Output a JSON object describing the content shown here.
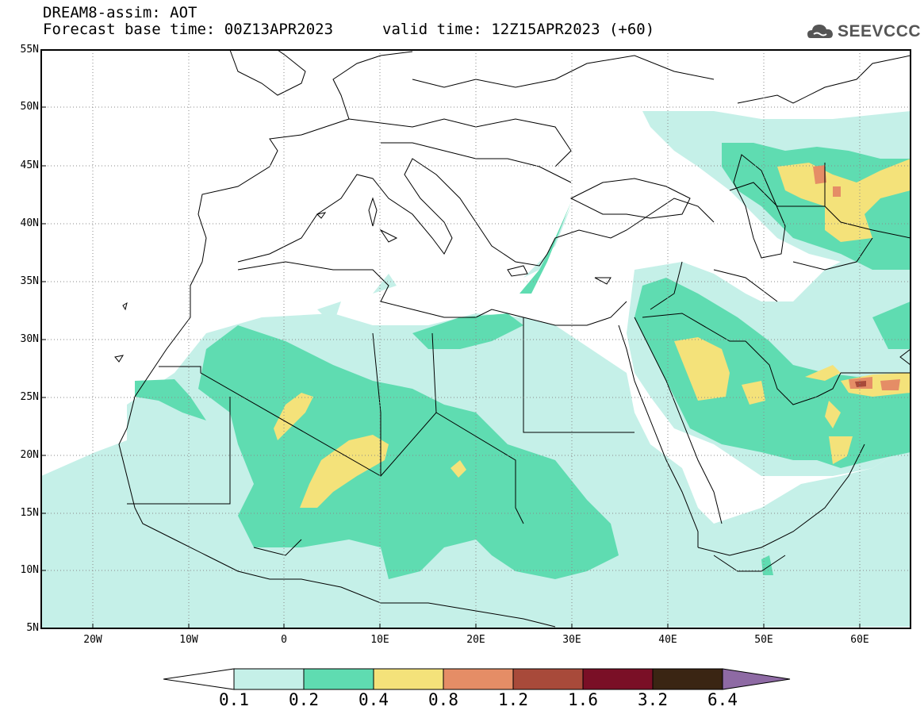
{
  "header": {
    "title": "DREAM8-assim: AOT",
    "base_time": "Forecast base time: 00Z13APR2023",
    "valid_time": "valid time: 12Z15APR2023 (+60)",
    "logo_text": "SEEVCCC"
  },
  "axes": {
    "lat_labels": [
      "55N",
      "50N",
      "45N",
      "40N",
      "35N",
      "30N",
      "25N",
      "20N",
      "15N",
      "10N",
      "5N"
    ],
    "lon_labels": [
      "20W",
      "10W",
      "0",
      "10E",
      "20E",
      "30E",
      "40E",
      "50E",
      "60E"
    ]
  },
  "legend": {
    "labels": [
      "0.1",
      "0.2",
      "0.4",
      "0.8",
      "1.2",
      "1.6",
      "3.2",
      "6.4"
    ],
    "colors": [
      "#ffffff",
      "#c5f0e8",
      "#5fdcb1",
      "#f4e27a",
      "#e58d66",
      "#a84a3a",
      "#7a0f26",
      "#3a2513",
      "#8e6aa4"
    ]
  },
  "map": {
    "projection": "cylindrical",
    "lon_range": [
      -25,
      65
    ],
    "lat_range": [
      5,
      55
    ]
  }
}
